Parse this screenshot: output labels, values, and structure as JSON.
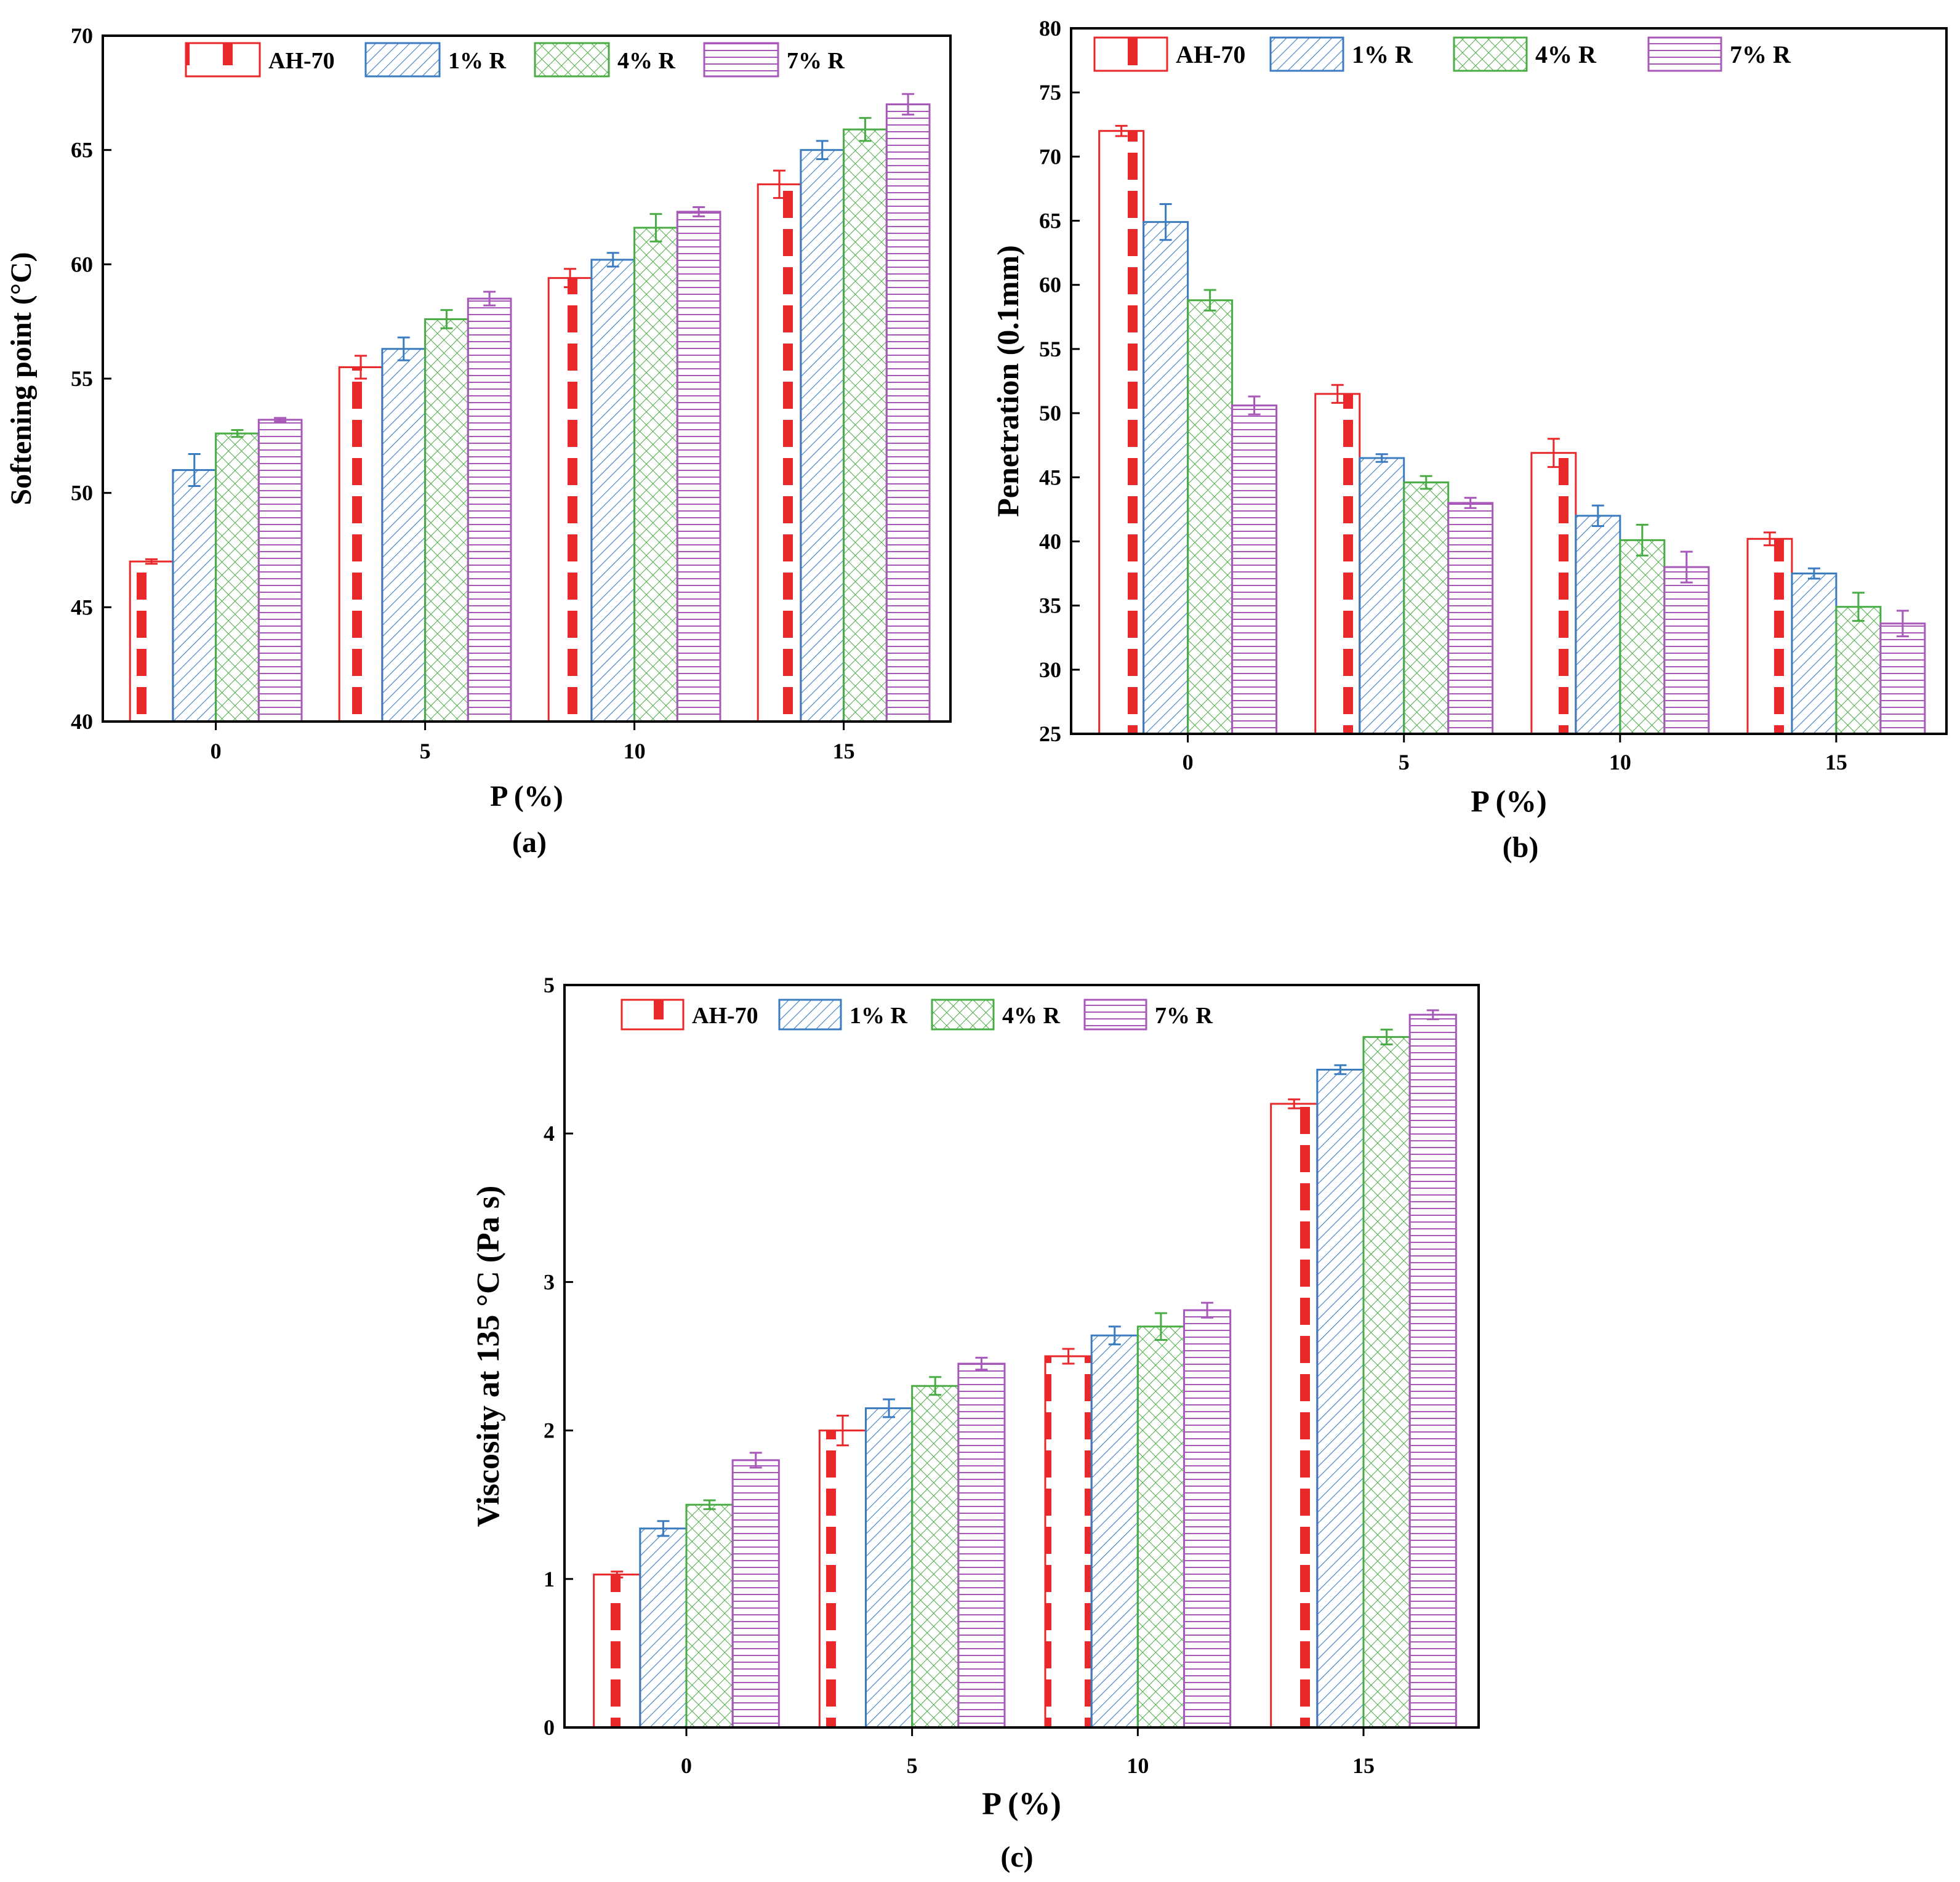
{
  "figure": {
    "panel_labels": [
      "(a)",
      "(b)",
      "(c)"
    ]
  },
  "legend": {
    "entries": [
      "AH-70",
      "1% R",
      "4% R",
      "7% R"
    ]
  },
  "series_styles": [
    {
      "name": "AH-70",
      "color": "#e8282b",
      "pattern": "dashed-vertical"
    },
    {
      "name": "1% R",
      "color": "#3b7cc0",
      "pattern": "diagonal-hatch"
    },
    {
      "name": "4% R",
      "color": "#4aac44",
      "pattern": "cross-hatch"
    },
    {
      "name": "7% R",
      "color": "#a758b8",
      "pattern": "horizontal-lines"
    }
  ],
  "chart_data": [
    {
      "type": "bar",
      "panel": "(a)",
      "title": "",
      "xlabel": "P (%)",
      "ylabel": "Softening point (°C)",
      "categories": [
        "0",
        "5",
        "10",
        "15"
      ],
      "ylim": [
        40,
        70
      ],
      "yticks": [
        40,
        45,
        50,
        55,
        60,
        65,
        70
      ],
      "series": [
        {
          "name": "AH-70",
          "values": [
            47.0,
            55.5,
            59.4,
            63.5
          ],
          "errors": [
            0.1,
            0.5,
            0.4,
            0.6
          ]
        },
        {
          "name": "1% R",
          "values": [
            51.0,
            56.3,
            60.2,
            65.0
          ],
          "errors": [
            0.7,
            0.5,
            0.3,
            0.4
          ]
        },
        {
          "name": "4% R",
          "values": [
            52.6,
            57.6,
            61.6,
            65.9
          ],
          "errors": [
            0.15,
            0.4,
            0.6,
            0.5
          ]
        },
        {
          "name": "7% R",
          "values": [
            53.2,
            58.5,
            62.3,
            67.0
          ],
          "errors": [
            0.08,
            0.3,
            0.2,
            0.45
          ]
        }
      ],
      "legend_position": "top"
    },
    {
      "type": "bar",
      "panel": "(b)",
      "title": "",
      "xlabel": "P (%)",
      "ylabel": "Penetration (0.1mm)",
      "categories": [
        "0",
        "5",
        "10",
        "15"
      ],
      "ylim": [
        25,
        80
      ],
      "yticks": [
        25,
        30,
        35,
        40,
        45,
        50,
        55,
        60,
        65,
        70,
        75,
        80
      ],
      "series": [
        {
          "name": "AH-70",
          "values": [
            72.0,
            51.5,
            46.9,
            40.2
          ],
          "errors": [
            0.4,
            0.7,
            1.1,
            0.5
          ]
        },
        {
          "name": "1% R",
          "values": [
            64.9,
            46.5,
            42.0,
            37.5
          ],
          "errors": [
            1.4,
            0.3,
            0.8,
            0.4
          ]
        },
        {
          "name": "4% R",
          "values": [
            58.8,
            44.6,
            40.1,
            34.9
          ],
          "errors": [
            0.8,
            0.5,
            1.2,
            1.1
          ]
        },
        {
          "name": "7% R",
          "values": [
            50.6,
            43.0,
            38.0,
            33.6
          ],
          "errors": [
            0.7,
            0.4,
            1.2,
            1.0
          ]
        }
      ],
      "legend_position": "top"
    },
    {
      "type": "bar",
      "panel": "(c)",
      "title": "",
      "xlabel": "P (%)",
      "ylabel": "Viscosity at 135 °C (Pa s)",
      "categories": [
        "0",
        "5",
        "10",
        "15"
      ],
      "ylim": [
        0,
        5
      ],
      "yticks": [
        0,
        1,
        2,
        3,
        4,
        5
      ],
      "series": [
        {
          "name": "AH-70",
          "values": [
            1.03,
            2.0,
            2.5,
            4.2
          ],
          "errors": [
            0.02,
            0.1,
            0.05,
            0.03
          ]
        },
        {
          "name": "1% R",
          "values": [
            1.34,
            2.15,
            2.64,
            4.43
          ],
          "errors": [
            0.05,
            0.06,
            0.06,
            0.03
          ]
        },
        {
          "name": "4% R",
          "values": [
            1.5,
            2.3,
            2.7,
            4.65
          ],
          "errors": [
            0.03,
            0.06,
            0.09,
            0.05
          ]
        },
        {
          "name": "7% R",
          "values": [
            1.8,
            2.45,
            2.81,
            4.8
          ],
          "errors": [
            0.05,
            0.04,
            0.05,
            0.03
          ]
        }
      ],
      "legend_position": "top"
    }
  ]
}
